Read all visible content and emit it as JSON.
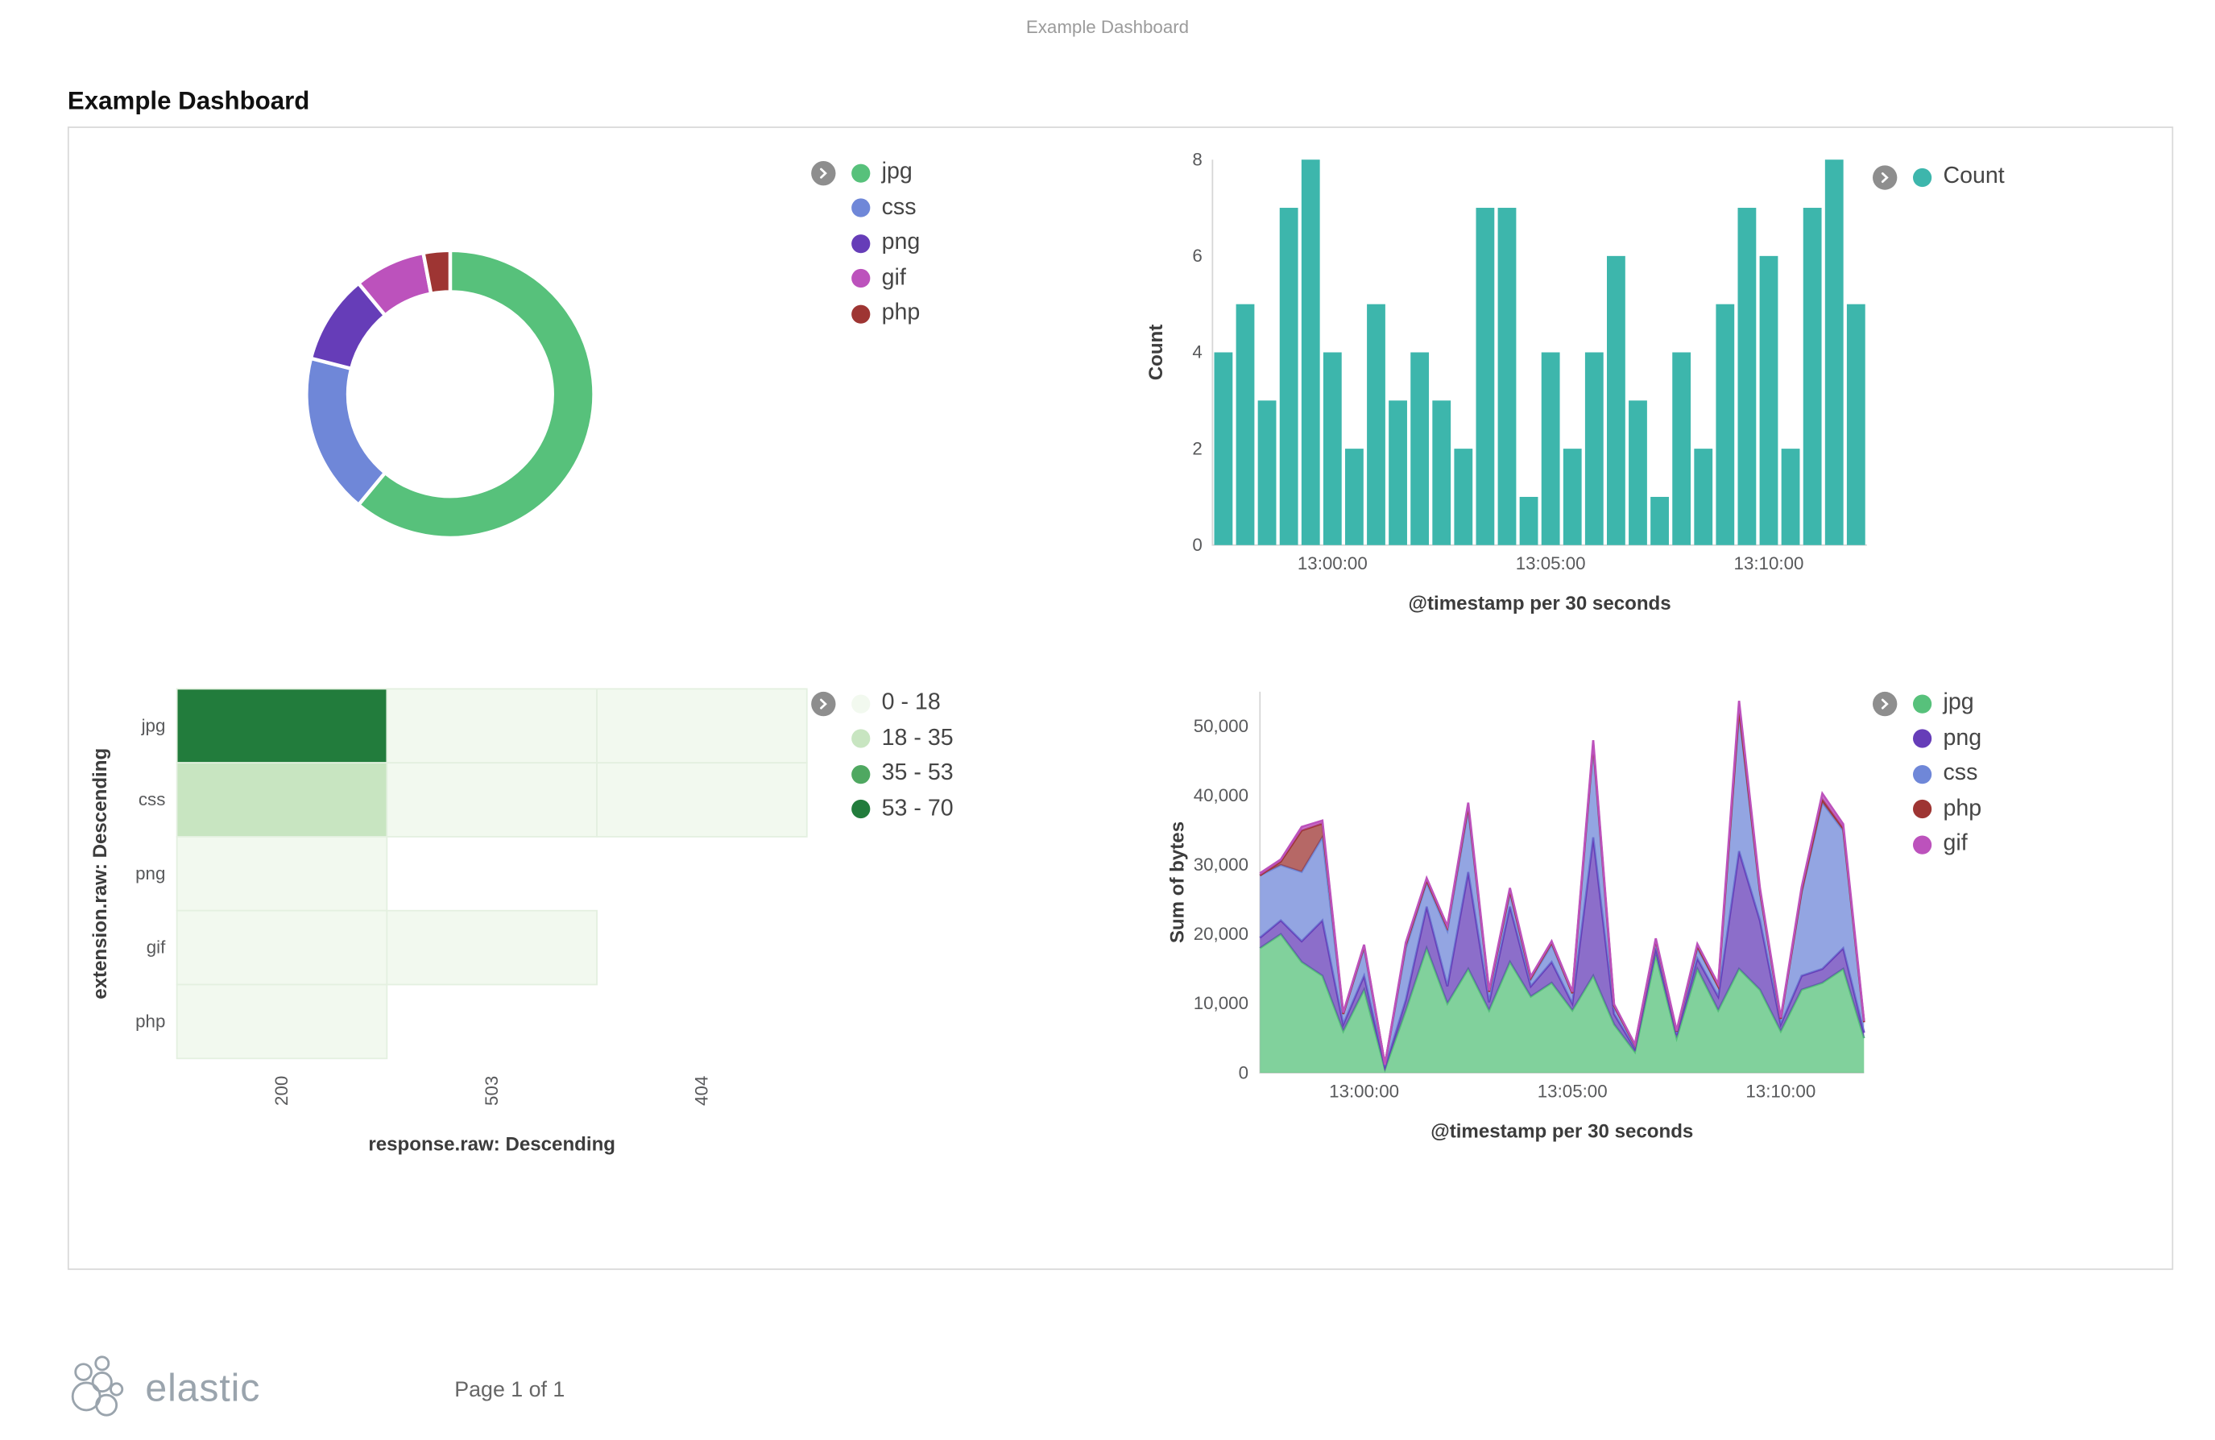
{
  "page": {
    "print_header": "Example Dashboard",
    "title": "Example Dashboard",
    "footer": {
      "brand": "elastic",
      "page_label": "Page 1 of 1"
    }
  },
  "icons": {
    "legend_toggle": "chevron-right-circle"
  },
  "chart_data": [
    {
      "id": "pie",
      "type": "pie",
      "donut": true,
      "legend_position": "right",
      "slices": [
        {
          "label": "jpg",
          "value": 61,
          "color": "#57C17B"
        },
        {
          "label": "css",
          "value": 18,
          "color": "#6F87D8"
        },
        {
          "label": "png",
          "value": 10,
          "color": "#663DB8"
        },
        {
          "label": "gif",
          "value": 8,
          "color": "#BC52BC"
        },
        {
          "label": "php",
          "value": 3,
          "color": "#9E3533"
        }
      ]
    },
    {
      "id": "histogram",
      "type": "bar",
      "series_label": "Count",
      "color": "#3DB6AC",
      "xlabel": "@timestamp per 30 seconds",
      "ylabel": "Count",
      "ylim": [
        0,
        8
      ],
      "yticks": [
        0,
        2,
        4,
        6,
        8
      ],
      "xticks": [
        {
          "label": "13:00:00",
          "index": 5
        },
        {
          "label": "13:05:00",
          "index": 15
        },
        {
          "label": "13:10:00",
          "index": 25
        }
      ],
      "values": [
        4,
        5,
        3,
        7,
        8,
        4,
        2,
        5,
        3,
        4,
        3,
        2,
        7,
        7,
        1,
        4,
        2,
        4,
        6,
        3,
        1,
        4,
        2,
        5,
        7,
        6,
        2,
        7,
        8,
        5
      ]
    },
    {
      "id": "heatmap",
      "type": "heatmap",
      "xlabel": "response.raw: Descending",
      "ylabel": "extension.raw: Descending",
      "rows": [
        "jpg",
        "css",
        "png",
        "gif",
        "php"
      ],
      "cols": [
        "200",
        "503",
        "404"
      ],
      "values": [
        [
          68,
          5,
          4
        ],
        [
          26,
          3,
          2
        ],
        [
          4,
          null,
          null
        ],
        [
          3,
          1,
          null
        ],
        [
          2,
          null,
          null
        ]
      ],
      "buckets": [
        {
          "label": "0 - 18",
          "max": 18,
          "color": "#F2F9EF"
        },
        {
          "label": "18 - 35",
          "max": 35,
          "color": "#C8E5C1"
        },
        {
          "label": "35 - 53",
          "max": 53,
          "color": "#4FA861"
        },
        {
          "label": "53 - 70",
          "max": 70,
          "color": "#227C3C"
        }
      ]
    },
    {
      "id": "area",
      "type": "area",
      "stacked": true,
      "xlabel": "@timestamp per 30 seconds",
      "ylabel": "Sum of bytes",
      "ylim": [
        0,
        55000
      ],
      "yticks": [
        0,
        10000,
        20000,
        30000,
        40000,
        50000
      ],
      "ytick_labels": [
        "0",
        "10,000",
        "20,000",
        "30,000",
        "40,000",
        "50,000"
      ],
      "xticks": [
        {
          "label": "13:00:00",
          "index": 5
        },
        {
          "label": "13:05:00",
          "index": 15
        },
        {
          "label": "13:10:00",
          "index": 25
        }
      ],
      "series": [
        {
          "name": "jpg",
          "color": "#57C17B",
          "values": [
            18000,
            20000,
            16000,
            14000,
            6000,
            12000,
            500,
            9000,
            18000,
            10000,
            15000,
            9000,
            16000,
            11000,
            13000,
            9000,
            14000,
            7000,
            3000,
            17000,
            5000,
            15000,
            9000,
            15000,
            12000,
            6000,
            12000,
            13000,
            15000,
            5000
          ]
        },
        {
          "name": "png",
          "color": "#663DB8",
          "values": [
            1500,
            2000,
            3000,
            8000,
            1000,
            2000,
            300,
            1500,
            6000,
            2500,
            14000,
            1200,
            8000,
            1500,
            3000,
            1000,
            20000,
            1500,
            500,
            1000,
            500,
            1500,
            2000,
            17000,
            10000,
            1000,
            2000,
            2000,
            3000,
            800
          ]
        },
        {
          "name": "css",
          "color": "#6F87D8",
          "values": [
            9000,
            8000,
            10000,
            12000,
            1500,
            4000,
            400,
            7500,
            3500,
            8000,
            9000,
            1500,
            2000,
            1000,
            2500,
            1500,
            13000,
            1000,
            500,
            1000,
            500,
            1500,
            1500,
            20000,
            4000,
            800,
            12000,
            24000,
            17000,
            1500
          ]
        },
        {
          "name": "php",
          "color": "#9E3533",
          "values": [
            0,
            500,
            6000,
            2000,
            0,
            300,
            0,
            500,
            300,
            500,
            500,
            0,
            300,
            200,
            300,
            0,
            500,
            200,
            0,
            200,
            0,
            300,
            0,
            500,
            300,
            0,
            300,
            500,
            300,
            0
          ]
        },
        {
          "name": "gif",
          "color": "#BC52BC",
          "values": [
            300,
            300,
            500,
            400,
            200,
            200,
            0,
            300,
            300,
            200,
            500,
            200,
            400,
            200,
            200,
            200,
            500,
            200,
            100,
            200,
            100,
            300,
            300,
            1200,
            400,
            200,
            500,
            800,
            600,
            200
          ]
        }
      ]
    }
  ]
}
